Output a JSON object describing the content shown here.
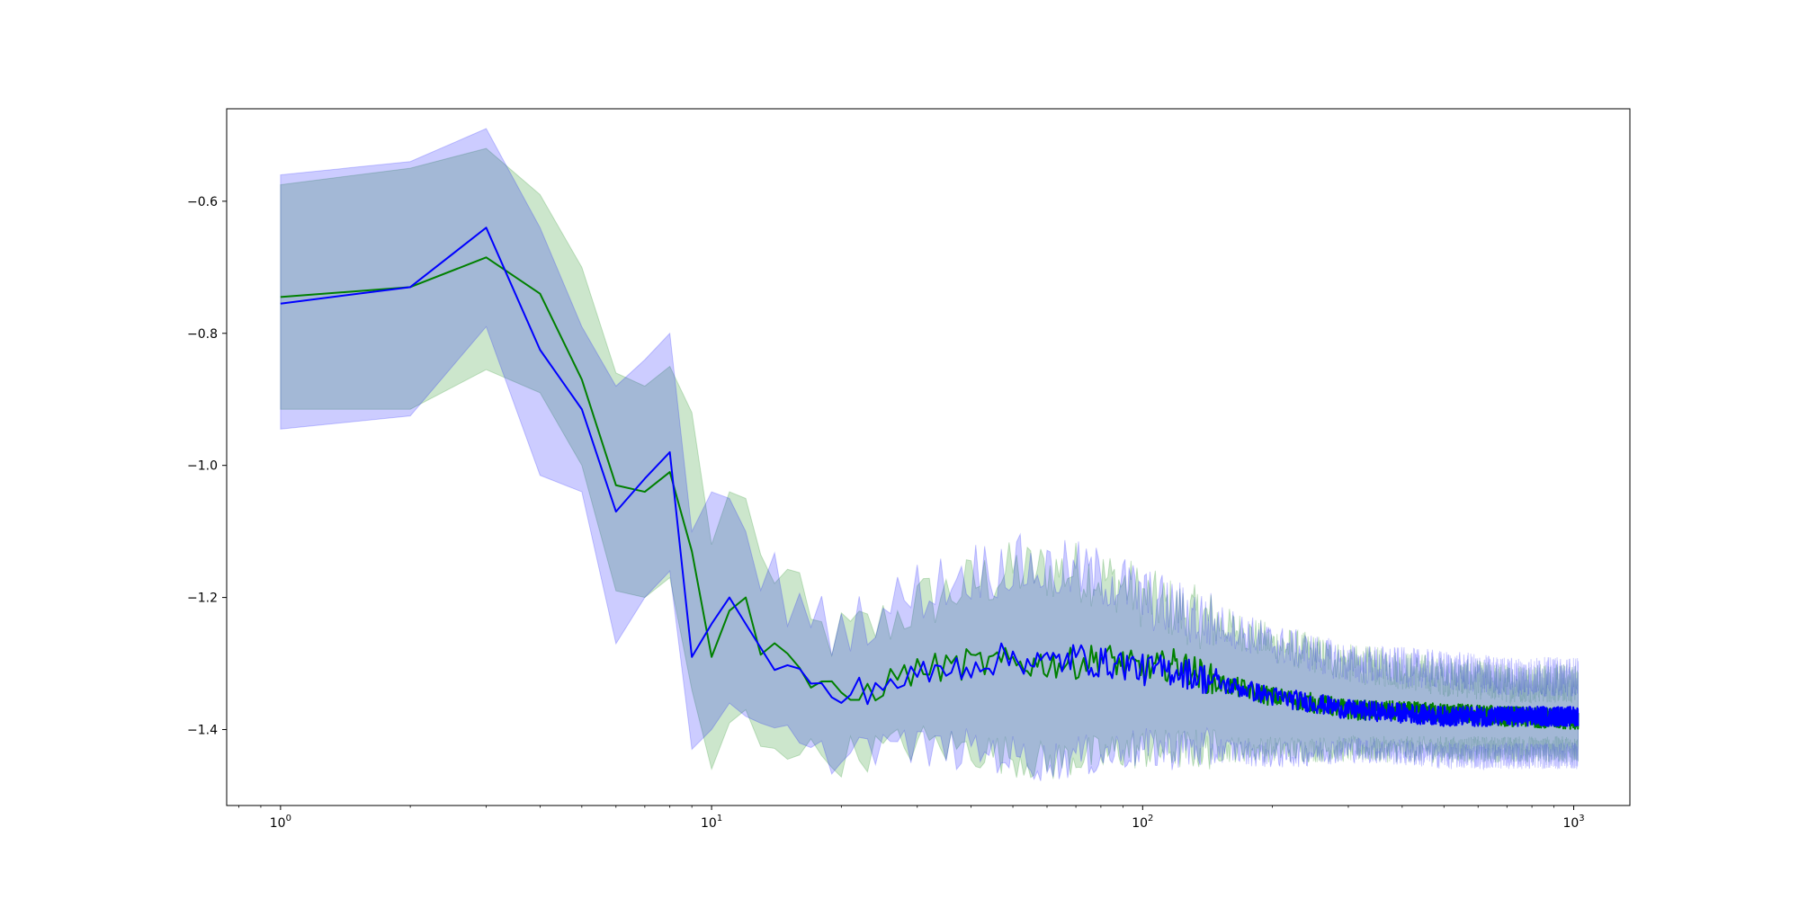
{
  "chart_data": {
    "type": "line",
    "title": "",
    "xlabel": "",
    "ylabel": "",
    "x_scale": "log",
    "xlim": [
      0.75,
      1350
    ],
    "ylim": [
      -1.515,
      -0.46
    ],
    "grid": false,
    "legend": "none",
    "y_ticks": [
      {
        "value": -0.6,
        "label": "−0.6"
      },
      {
        "value": -0.8,
        "label": "−0.8"
      },
      {
        "value": -1.0,
        "label": "−1.0"
      },
      {
        "value": -1.2,
        "label": "−1.2"
      },
      {
        "value": -1.4,
        "label": "−1.4"
      }
    ],
    "x_ticks": [
      {
        "value": 1,
        "base": "10",
        "exp": "0"
      },
      {
        "value": 10,
        "base": "10",
        "exp": "1"
      },
      {
        "value": 100,
        "base": "10",
        "exp": "2"
      },
      {
        "value": 1000,
        "base": "10",
        "exp": "3"
      }
    ],
    "series": [
      {
        "color": "#008000",
        "band_color": "#008000",
        "band_opacity": 0.2,
        "x": [
          1,
          2,
          3,
          4,
          5,
          6,
          7,
          8,
          9,
          10,
          11,
          12,
          13,
          15,
          17,
          20,
          25,
          30,
          40,
          50,
          60,
          70,
          80,
          90,
          100,
          120,
          150,
          200,
          300,
          500,
          700,
          1024
        ],
        "mean": [
          -0.745,
          -0.73,
          -0.685,
          -0.74,
          -0.87,
          -1.03,
          -1.04,
          -1.01,
          -1.13,
          -1.29,
          -1.22,
          -1.2,
          -1.27,
          -1.28,
          -1.33,
          -1.36,
          -1.33,
          -1.31,
          -1.3,
          -1.3,
          -1.3,
          -1.3,
          -1.29,
          -1.3,
          -1.31,
          -1.3,
          -1.33,
          -1.35,
          -1.37,
          -1.375,
          -1.38,
          -1.385
        ],
        "upper": [
          -0.575,
          -0.55,
          -0.52,
          -0.59,
          -0.7,
          -0.86,
          -0.88,
          -0.85,
          -0.92,
          -1.12,
          -1.04,
          -1.05,
          -1.15,
          -1.17,
          -1.25,
          -1.26,
          -1.24,
          -1.21,
          -1.18,
          -1.16,
          -1.16,
          -1.16,
          -1.17,
          -1.18,
          -1.2,
          -1.22,
          -1.24,
          -1.27,
          -1.3,
          -1.32,
          -1.33,
          -1.33
        ],
        "lower": [
          -0.915,
          -0.915,
          -0.855,
          -0.89,
          -1.0,
          -1.19,
          -1.2,
          -1.17,
          -1.34,
          -1.46,
          -1.39,
          -1.37,
          -1.41,
          -1.42,
          -1.44,
          -1.44,
          -1.43,
          -1.42,
          -1.43,
          -1.44,
          -1.45,
          -1.44,
          -1.44,
          -1.43,
          -1.43,
          -1.43,
          -1.43,
          -1.43,
          -1.43,
          -1.43,
          -1.43,
          -1.43
        ]
      },
      {
        "color": "#0000ff",
        "band_color": "#0000ff",
        "band_opacity": 0.2,
        "x": [
          1,
          2,
          3,
          4,
          5,
          6,
          7,
          8,
          9,
          10,
          11,
          12,
          13,
          15,
          17,
          20,
          25,
          30,
          40,
          50,
          60,
          70,
          80,
          90,
          100,
          120,
          150,
          200,
          300,
          500,
          700,
          1024
        ],
        "mean": [
          -0.755,
          -0.73,
          -0.64,
          -0.825,
          -0.915,
          -1.07,
          -1.02,
          -0.98,
          -1.29,
          -1.24,
          -1.2,
          -1.24,
          -1.29,
          -1.3,
          -1.34,
          -1.35,
          -1.33,
          -1.32,
          -1.3,
          -1.29,
          -1.3,
          -1.29,
          -1.3,
          -1.3,
          -1.31,
          -1.31,
          -1.33,
          -1.35,
          -1.37,
          -1.38,
          -1.38,
          -1.38
        ],
        "upper": [
          -0.56,
          -0.54,
          -0.49,
          -0.64,
          -0.79,
          -0.88,
          -0.84,
          -0.8,
          -1.1,
          -1.04,
          -1.05,
          -1.1,
          -1.15,
          -1.2,
          -1.24,
          -1.24,
          -1.22,
          -1.19,
          -1.16,
          -1.15,
          -1.16,
          -1.16,
          -1.17,
          -1.18,
          -1.2,
          -1.22,
          -1.24,
          -1.27,
          -1.3,
          -1.31,
          -1.32,
          -1.32
        ],
        "lower": [
          -0.945,
          -0.925,
          -0.79,
          -1.015,
          -1.04,
          -1.27,
          -1.2,
          -1.16,
          -1.43,
          -1.4,
          -1.36,
          -1.38,
          -1.4,
          -1.41,
          -1.45,
          -1.43,
          -1.42,
          -1.43,
          -1.43,
          -1.44,
          -1.45,
          -1.44,
          -1.44,
          -1.43,
          -1.43,
          -1.43,
          -1.43,
          -1.44,
          -1.43,
          -1.44,
          -1.44,
          -1.44
        ]
      }
    ]
  }
}
